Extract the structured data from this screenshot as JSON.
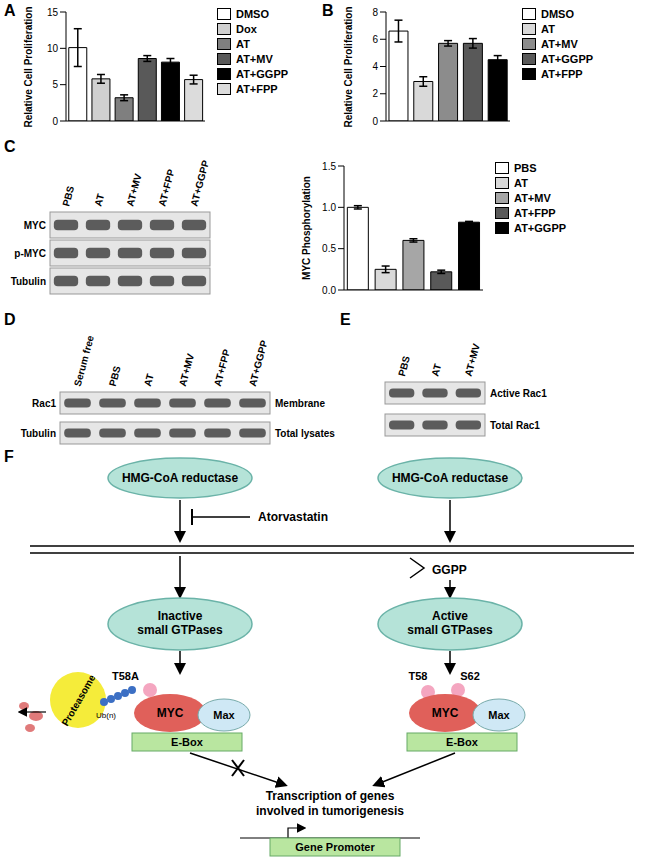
{
  "panels": [
    "A",
    "B",
    "C",
    "D",
    "E",
    "F"
  ],
  "chart_data": [
    {
      "type": "bar",
      "y_label": "Relative Cell Proliferation",
      "categories": [
        "DMSO",
        "Dox",
        "AT",
        "AT+MV",
        "AT+GGPP",
        "AT+FPP"
      ],
      "values": [
        10.1,
        5.8,
        3.2,
        8.6,
        8.1,
        5.7
      ],
      "errors": [
        2.6,
        0.6,
        0.4,
        0.4,
        0.5,
        0.6
      ],
      "colors": [
        "#ffffff",
        "#d0d0d0",
        "#7f7f7f",
        "#595959",
        "#000000",
        "#dcdcdc"
      ],
      "ylim": [
        0,
        15
      ],
      "yticks": [
        0,
        5,
        10,
        15
      ],
      "tick_labels": "y",
      "legend": "right"
    },
    {
      "type": "bar",
      "y_label": "Relative Cell Proliferation",
      "categories": [
        "DMSO",
        "AT",
        "AT+MV",
        "AT+GGPP",
        "AT+FPP"
      ],
      "values": [
        6.6,
        2.9,
        5.7,
        5.7,
        4.5
      ],
      "errors": [
        0.8,
        0.35,
        0.2,
        0.35,
        0.3
      ],
      "colors": [
        "#ffffff",
        "#d9d9d9",
        "#8c8c8c",
        "#595959",
        "#000000"
      ],
      "ylim": [
        0,
        8
      ],
      "yticks": [
        0,
        2,
        4,
        6,
        8
      ],
      "tick_labels": "y",
      "legend": "right"
    },
    {
      "type": "bar",
      "y_label": "MYC Phosphorylation",
      "categories": [
        "PBS",
        "AT",
        "AT+MV",
        "AT+FPP",
        "AT+GGPP"
      ],
      "values": [
        1.0,
        0.25,
        0.6,
        0.22,
        0.82
      ],
      "errors": [
        0.02,
        0.04,
        0.02,
        0.02,
        0.01
      ],
      "colors": [
        "#ffffff",
        "#d9d9d9",
        "#a6a6a6",
        "#595959",
        "#000000"
      ],
      "ylim": [
        0,
        1.5
      ],
      "yticks": [
        {
          "value": 0,
          "label": "0.0"
        },
        {
          "value": 0.5,
          "label": "0.5"
        },
        {
          "value": 1,
          "label": "1.0"
        },
        {
          "value": 1.5,
          "label": "1.5"
        }
      ],
      "tick_labels": "y",
      "legend": "right"
    }
  ],
  "blots": [
    {
      "lanes": [
        "PBS",
        "AT",
        "AT+MV",
        "AT+FPP",
        "AT+GGPP"
      ],
      "rows": [
        {
          "left": "MYC"
        },
        {
          "left": "p-MYC"
        },
        {
          "left": "Tubulin"
        }
      ]
    },
    {
      "lanes": [
        "Serum free",
        "PBS",
        "AT",
        "AT+MV",
        "AT+FPP",
        "AT+GGPP"
      ],
      "rows": [
        {
          "left": "Rac1",
          "right": "Membrane"
        },
        {
          "left": "Tubulin",
          "right": "Total lysates"
        }
      ]
    },
    {
      "lanes": [
        "PBS",
        "AT",
        "AT+MV"
      ],
      "rows": [
        {
          "right": "Active Rac1"
        },
        {
          "right": "Total Rac1"
        }
      ]
    }
  ],
  "diagram": {
    "enzyme_left": "HMG-CoA reductase",
    "enzyme_right": "HMG-CoA reductase",
    "inhibitor": "Atorvastatin",
    "metabolite": "GGPP",
    "gtpase_left": [
      "Inactive",
      "small GTPases"
    ],
    "gtpase_right": [
      "Active",
      "small GTPases"
    ],
    "proteasome": "Proteasome",
    "ubiquitin": "Ub(n)",
    "mutant_site": "T58A",
    "myc_left": "MYC",
    "max_left": "Max",
    "ebox_left": "E-Box",
    "site1": "T58",
    "site2": "S62",
    "myc_right": "MYC",
    "max_right": "Max",
    "ebox_right": "E-Box",
    "outcome": [
      "Transcription of genes",
      "involved in tumorigenesis"
    ],
    "promoter": "Gene Promoter"
  }
}
